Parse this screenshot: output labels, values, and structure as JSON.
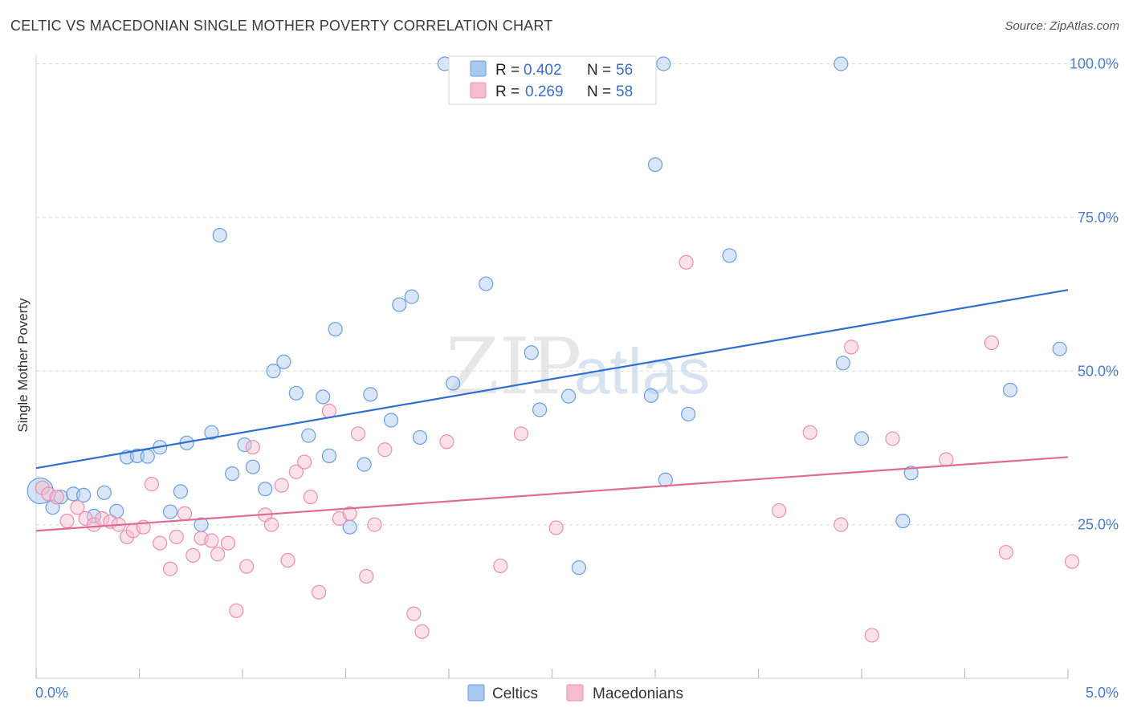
{
  "title": "CELTIC VS MACEDONIAN SINGLE MOTHER POVERTY CORRELATION CHART",
  "source": "Source: ZipAtlas.com",
  "watermark": {
    "zip": "ZIP",
    "atlas": "atlas"
  },
  "colors": {
    "celtics_fill": "#a9c8f0",
    "celtics_stroke": "#6a9fdc",
    "celtics_line": "#2f6fd0",
    "macedonians_fill": "#f6bdd0",
    "macedonians_stroke": "#e98fae",
    "macedonians_line": "#e06a96",
    "tick_text": "#4a7cc9",
    "grid": "#d9d9d9"
  },
  "legend": {
    "rows": [
      {
        "r_label": "R = ",
        "r_value": "0.402",
        "n_label": "N = ",
        "n_value": "56"
      },
      {
        "r_label": "R = ",
        "r_value": "0.269",
        "n_label": "N = ",
        "n_value": "58"
      }
    ]
  },
  "chart_data": {
    "type": "scatter",
    "xlabel": "",
    "ylabel": "Single Mother Poverty",
    "xlim": [
      0,
      5
    ],
    "ylim": [
      0,
      105
    ],
    "x_tick_labels": [
      "0.0%",
      "5.0%"
    ],
    "y_ticks": [
      25,
      50,
      75,
      100
    ],
    "y_tick_labels": [
      "25.0%",
      "50.0%",
      "75.0%",
      "100.0%"
    ],
    "grid": "horizontal-dashed",
    "series": [
      {
        "name": "Celtics",
        "trend": {
          "x": [
            0,
            5
          ],
          "y": [
            34.2,
            63.2
          ]
        },
        "points": [
          [
            0.02,
            30.5
          ],
          [
            0.08,
            27.8
          ],
          [
            0.12,
            29.5
          ],
          [
            0.18,
            30.0
          ],
          [
            0.23,
            29.8
          ],
          [
            0.28,
            26.4
          ],
          [
            0.33,
            30.2
          ],
          [
            0.39,
            27.2
          ],
          [
            0.44,
            36.0
          ],
          [
            0.49,
            36.2
          ],
          [
            0.54,
            36.1
          ],
          [
            0.6,
            37.6
          ],
          [
            0.65,
            27.1
          ],
          [
            0.7,
            30.4
          ],
          [
            0.73,
            38.3
          ],
          [
            0.8,
            25.0
          ],
          [
            0.85,
            40.0
          ],
          [
            0.89,
            72.1
          ],
          [
            0.95,
            33.3
          ],
          [
            1.01,
            38.0
          ],
          [
            1.05,
            34.4
          ],
          [
            1.11,
            30.8
          ],
          [
            1.15,
            50.0
          ],
          [
            1.2,
            51.5
          ],
          [
            1.26,
            46.4
          ],
          [
            1.32,
            39.5
          ],
          [
            1.39,
            45.8
          ],
          [
            1.42,
            36.2
          ],
          [
            1.45,
            56.8
          ],
          [
            1.52,
            24.6
          ],
          [
            1.59,
            34.8
          ],
          [
            1.62,
            46.2
          ],
          [
            1.72,
            42.0
          ],
          [
            1.76,
            60.8
          ],
          [
            1.82,
            62.1
          ],
          [
            1.86,
            39.2
          ],
          [
            1.98,
            100.0
          ],
          [
            2.02,
            48.0
          ],
          [
            2.18,
            64.2
          ],
          [
            2.4,
            53.0
          ],
          [
            2.44,
            43.7
          ],
          [
            2.58,
            45.9
          ],
          [
            2.63,
            18.0
          ],
          [
            2.98,
            46.0
          ],
          [
            3.05,
            32.3
          ],
          [
            3.0,
            83.6
          ],
          [
            3.04,
            100.0
          ],
          [
            3.16,
            43.0
          ],
          [
            3.36,
            68.8
          ],
          [
            3.91,
            51.3
          ],
          [
            3.9,
            100.0
          ],
          [
            4.0,
            39.0
          ],
          [
            4.2,
            25.6
          ],
          [
            4.24,
            33.4
          ],
          [
            4.72,
            46.9
          ],
          [
            4.96,
            53.6
          ]
        ]
      },
      {
        "name": "Macedonians",
        "trend": {
          "x": [
            0,
            5
          ],
          "y": [
            24.0,
            36.0
          ]
        },
        "points": [
          [
            0.03,
            31.0
          ],
          [
            0.06,
            30.0
          ],
          [
            0.1,
            29.5
          ],
          [
            0.15,
            25.6
          ],
          [
            0.2,
            27.8
          ],
          [
            0.24,
            26.0
          ],
          [
            0.28,
            25.0
          ],
          [
            0.32,
            26.0
          ],
          [
            0.36,
            25.5
          ],
          [
            0.4,
            25.0
          ],
          [
            0.44,
            23.0
          ],
          [
            0.47,
            24.0
          ],
          [
            0.52,
            24.6
          ],
          [
            0.56,
            31.6
          ],
          [
            0.6,
            22.0
          ],
          [
            0.65,
            17.8
          ],
          [
            0.68,
            23.0
          ],
          [
            0.72,
            26.8
          ],
          [
            0.76,
            20.0
          ],
          [
            0.8,
            22.8
          ],
          [
            0.85,
            22.4
          ],
          [
            0.88,
            20.2
          ],
          [
            0.93,
            22.0
          ],
          [
            0.97,
            11.0
          ],
          [
            1.02,
            18.2
          ],
          [
            1.05,
            37.6
          ],
          [
            1.11,
            26.6
          ],
          [
            1.14,
            25.0
          ],
          [
            1.19,
            31.4
          ],
          [
            1.22,
            19.2
          ],
          [
            1.26,
            33.6
          ],
          [
            1.3,
            35.2
          ],
          [
            1.33,
            29.5
          ],
          [
            1.37,
            14.0
          ],
          [
            1.42,
            43.5
          ],
          [
            1.47,
            26.0
          ],
          [
            1.52,
            26.8
          ],
          [
            1.56,
            39.8
          ],
          [
            1.6,
            16.6
          ],
          [
            1.64,
            25.0
          ],
          [
            1.69,
            37.2
          ],
          [
            1.83,
            10.5
          ],
          [
            1.87,
            7.6
          ],
          [
            1.99,
            38.5
          ],
          [
            2.25,
            18.3
          ],
          [
            2.35,
            39.8
          ],
          [
            2.52,
            24.5
          ],
          [
            3.15,
            67.7
          ],
          [
            3.6,
            27.3
          ],
          [
            3.75,
            40.0
          ],
          [
            3.9,
            25.0
          ],
          [
            3.95,
            53.9
          ],
          [
            4.05,
            7.0
          ],
          [
            4.15,
            39.0
          ],
          [
            4.41,
            35.6
          ],
          [
            4.63,
            54.6
          ],
          [
            4.7,
            20.5
          ],
          [
            5.02,
            19.0
          ]
        ]
      }
    ]
  },
  "bottom_legend": [
    "Celtics",
    "Macedonians"
  ]
}
